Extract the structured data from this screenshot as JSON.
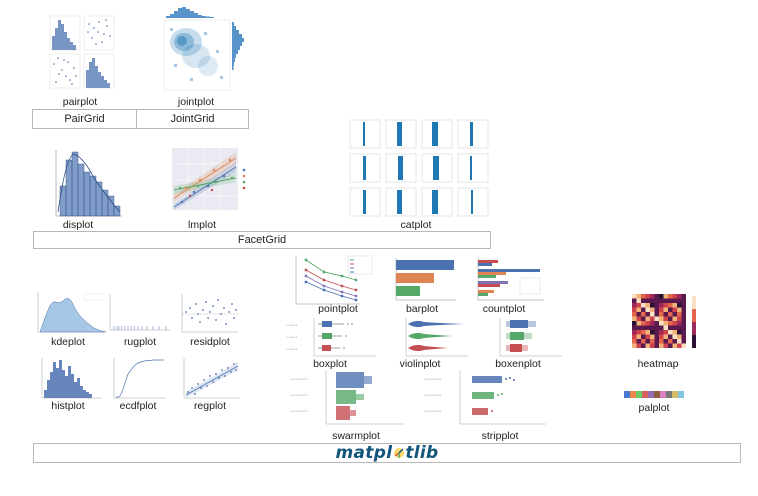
{
  "labels": {
    "pairplot": "pairplot",
    "jointplot": "jointplot",
    "displot": "displot",
    "lmplot": "lmplot",
    "catplot": "catplot",
    "pointplot": "pointplot",
    "barplot": "barplot",
    "countplot": "countplot",
    "boxplot": "boxplot",
    "violinplot": "violinplot",
    "boxenplot": "boxenplot",
    "swarmplot": "swarmplot",
    "stripplot": "stripplot",
    "kdeplot": "kdeplot",
    "rugplot": "rugplot",
    "residplot": "residplot",
    "histplot": "histplot",
    "ecdfplot": "ecdfplot",
    "regplot": "regplot",
    "heatmap": "heatmap",
    "palplot": "palplot"
  },
  "groups": {
    "pairgrid": "PairGrid",
    "jointgrid": "JointGrid",
    "facetgrid": "FacetGrid"
  },
  "footer": {
    "left": "matpl",
    "right": "tlib"
  },
  "colors": {
    "seaborn_blue": "#4c72b0",
    "light_blue": "#a6c8e6",
    "mid_blue": "#3b80c0",
    "dark_blue": "#1f77b4",
    "orange": "#dd8452",
    "green": "#55a868",
    "red": "#c44e52",
    "purple": "#8172b3",
    "mpl_blue": "#11557c"
  },
  "palette": [
    "#4878d0",
    "#ee854a",
    "#6acc64",
    "#d65f5f",
    "#956cb4",
    "#8c613c",
    "#dc7ec0",
    "#797979",
    "#d5bb67",
    "#82c6e2"
  ]
}
